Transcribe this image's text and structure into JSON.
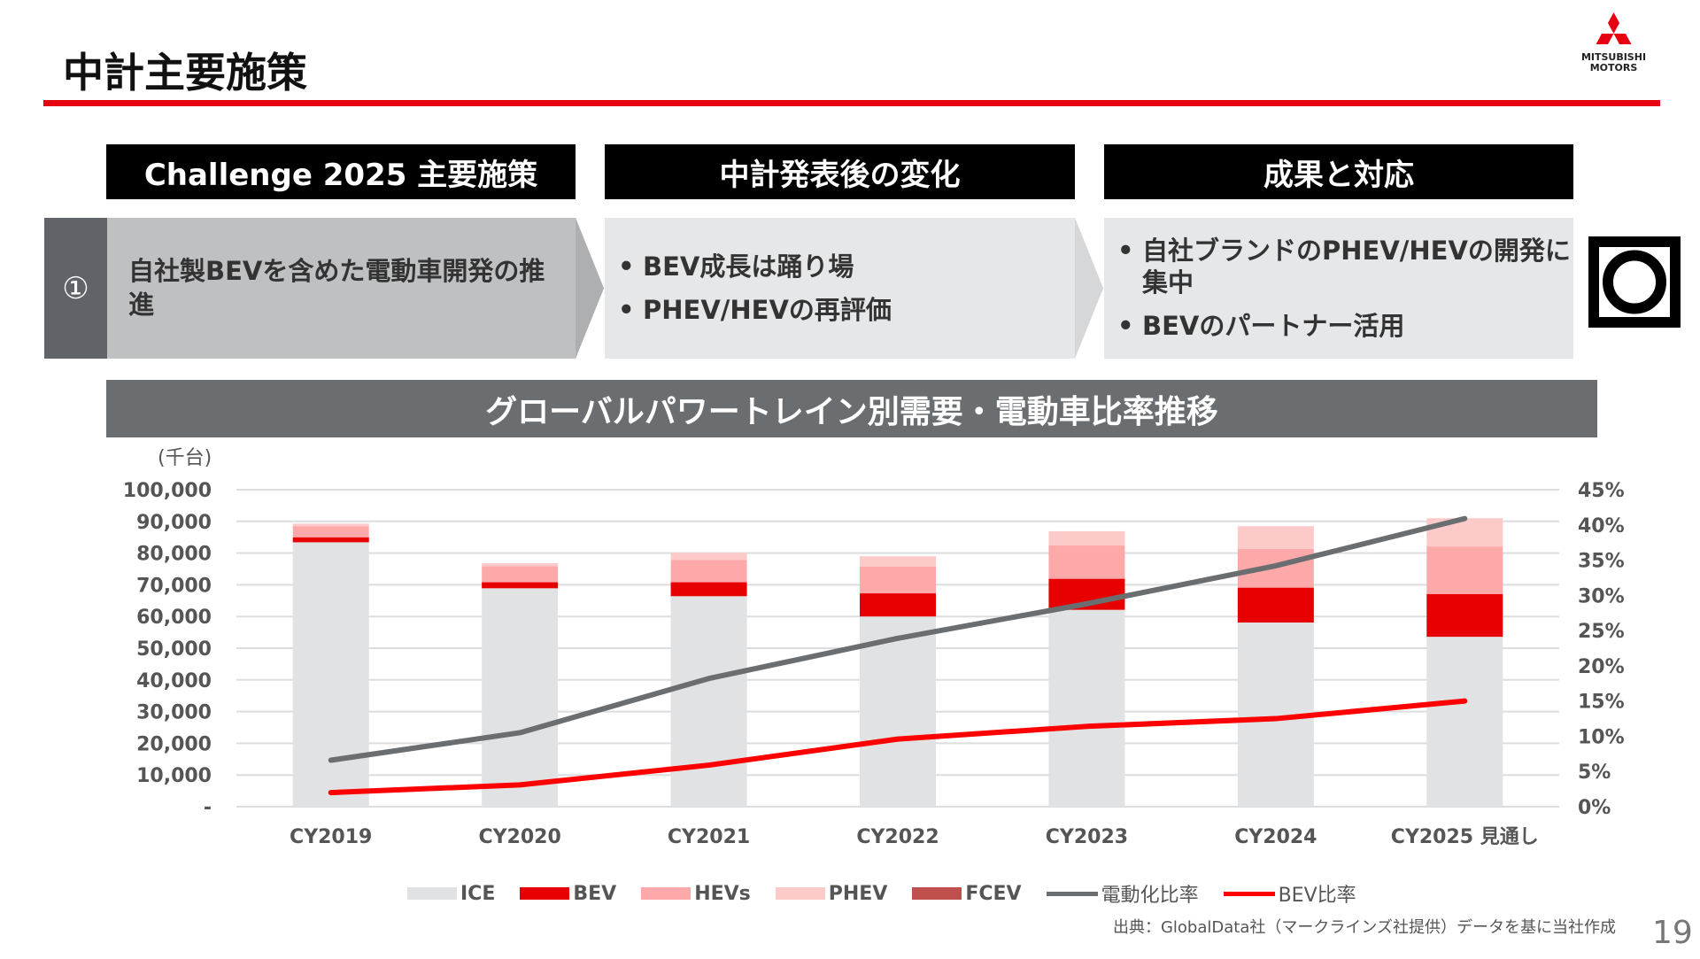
{
  "title": "中計主要施策",
  "logo": {
    "text_line1": "MITSUBISHI",
    "text_line2": "MOTORS",
    "color": "#e60012"
  },
  "columns": [
    "Challenge 2025 主要施策",
    "中計発表後の変化",
    "成果と対応"
  ],
  "row": {
    "number": "①",
    "policy": "自社製BEVを含めた電動車開発の推進",
    "changes": [
      "BEV成長は踊り場",
      "PHEV/HEVの再評価"
    ],
    "results": [
      "自社ブランドのPHEV/HEVの開発に集中",
      "BEVのパートナー活用"
    ],
    "evaluation_icon": "double-circle-in-square-icon"
  },
  "chart_title": "グローバルパワートレイン別需要・電動車比率推移",
  "footnote": "出典：GlobalData社（マークラインズ社提供）データを基に当社作成",
  "page_number": "19",
  "chart_data": {
    "type": "bar",
    "stacked": true,
    "unit_label": "(千台)",
    "categories": [
      "CY2019",
      "CY2020",
      "CY2021",
      "CY2022",
      "CY2023",
      "CY2024",
      "CY2025 見通し"
    ],
    "y_left": {
      "range": [
        0,
        100000
      ],
      "ticks": [
        "-",
        "10,000",
        "20,000",
        "30,000",
        "40,000",
        "50,000",
        "60,000",
        "70,000",
        "80,000",
        "90,000",
        "100,000"
      ]
    },
    "y_right": {
      "range": [
        0,
        45
      ],
      "ticks": [
        "0%",
        "5%",
        "10%",
        "15%",
        "20%",
        "25%",
        "30%",
        "35%",
        "40%",
        "45%"
      ]
    },
    "grid": true,
    "legend_position": "bottom",
    "series": [
      {
        "name": "ICE",
        "type": "bar",
        "color": "#e1e2e3",
        "values": [
          83400,
          68900,
          66400,
          60000,
          62100,
          58100,
          53600
        ]
      },
      {
        "name": "BEV",
        "type": "bar",
        "color": "#e60000",
        "values": [
          1600,
          1900,
          4400,
          7300,
          9800,
          11000,
          13500
        ]
      },
      {
        "name": "HEVs",
        "type": "bar",
        "color": "#fda9a9",
        "values": [
          3500,
          5100,
          7000,
          8400,
          10500,
          12200,
          15000
        ]
      },
      {
        "name": "PHEV",
        "type": "bar",
        "color": "#fdcaca",
        "values": [
          800,
          900,
          2300,
          3300,
          4500,
          7200,
          8900
        ]
      },
      {
        "name": "FCEV",
        "type": "bar",
        "color": "#c0504d",
        "values": [
          0,
          0,
          0,
          0,
          0,
          0,
          0
        ]
      },
      {
        "name": "電動化比率",
        "type": "line",
        "axis": "right",
        "color": "#6b6e71",
        "values": [
          6.6,
          10.5,
          18.2,
          23.9,
          28.8,
          34.2,
          40.9
        ]
      },
      {
        "name": "BEV比率",
        "type": "line",
        "axis": "right",
        "color": "#ff0000",
        "values": [
          2.0,
          3.1,
          5.9,
          9.6,
          11.4,
          12.5,
          15.0
        ]
      }
    ]
  }
}
